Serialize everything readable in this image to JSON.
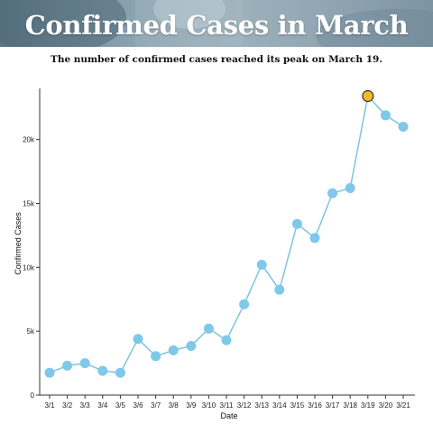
{
  "banner": {
    "title": "Confirmed Cases in March"
  },
  "subtitle": "The number of confirmed cases reached its peak on March 19.",
  "colors": {
    "line": "#7fc4e0",
    "point": "#7fc8ea",
    "peak_point": "#f4b62d",
    "peak_outline": "#333333",
    "axis": "#333333"
  },
  "chart_data": {
    "type": "line",
    "title": "",
    "xlabel": "Date",
    "ylabel": "Confirmed Cases",
    "categories": [
      "3/1",
      "3/2",
      "3/3",
      "3/4",
      "3/5",
      "3/6",
      "3/7",
      "3/8",
      "3/9",
      "3/10",
      "3/11",
      "3/12",
      "3/13",
      "3/14",
      "3/15",
      "3/16",
      "3/17",
      "3/18",
      "3/19",
      "3/20",
      "3/21"
    ],
    "series": [
      {
        "values": [
          1750,
          2300,
          2500,
          1900,
          1750,
          4400,
          3050,
          3500,
          3850,
          5200,
          4300,
          7100,
          10200,
          8250,
          13400,
          12300,
          15800,
          16200,
          23400,
          21900,
          21000
        ]
      }
    ],
    "ylim": [
      0,
      24000
    ],
    "yticks": [
      0,
      5000,
      10000,
      15000,
      20000
    ],
    "ytick_labels": [
      "0",
      "5k",
      "10k",
      "15k",
      "20k"
    ],
    "highlight_index": 18,
    "grid": false,
    "legend": "none"
  }
}
